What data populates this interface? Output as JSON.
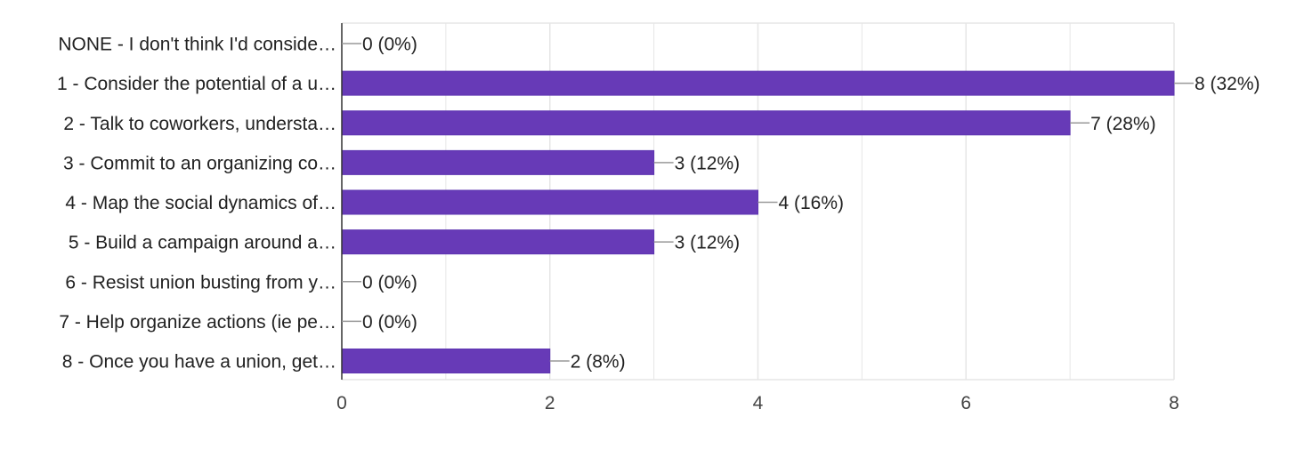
{
  "chart_data": {
    "type": "bar",
    "orientation": "horizontal",
    "categories": [
      "NONE - I don't think I'd conside…",
      "1 - Consider the potential of a u…",
      "2 - Talk to coworkers, understa…",
      "3 - Commit to an organizing co…",
      "4 - Map the social dynamics of…",
      "5 - Build a campaign around a…",
      "6 - Resist union busting from y…",
      "7 - Help organize actions (ie pe…",
      "8 - Once you have a union, get…"
    ],
    "values": [
      0,
      8,
      7,
      3,
      4,
      3,
      0,
      0,
      2
    ],
    "value_labels": [
      "0 (0%)",
      "8 (32%)",
      "7 (28%)",
      "3 (12%)",
      "4 (16%)",
      "3 (12%)",
      "0 (0%)",
      "0 (0%)",
      "2 (8%)"
    ],
    "xlim": [
      0,
      8
    ],
    "xticks": [
      0,
      2,
      4,
      6,
      8
    ],
    "xtick_labels": [
      "0",
      "2",
      "4",
      "6",
      "8"
    ],
    "title": "",
    "xlabel": "",
    "ylabel": "",
    "grid": true,
    "legend": "none",
    "colors": {
      "bar": "#673ab7",
      "bar_edge": "#5e35b1",
      "grid": "#e6e6e6",
      "axis": "#333333",
      "leader": "#999999",
      "text": "#222222"
    }
  }
}
